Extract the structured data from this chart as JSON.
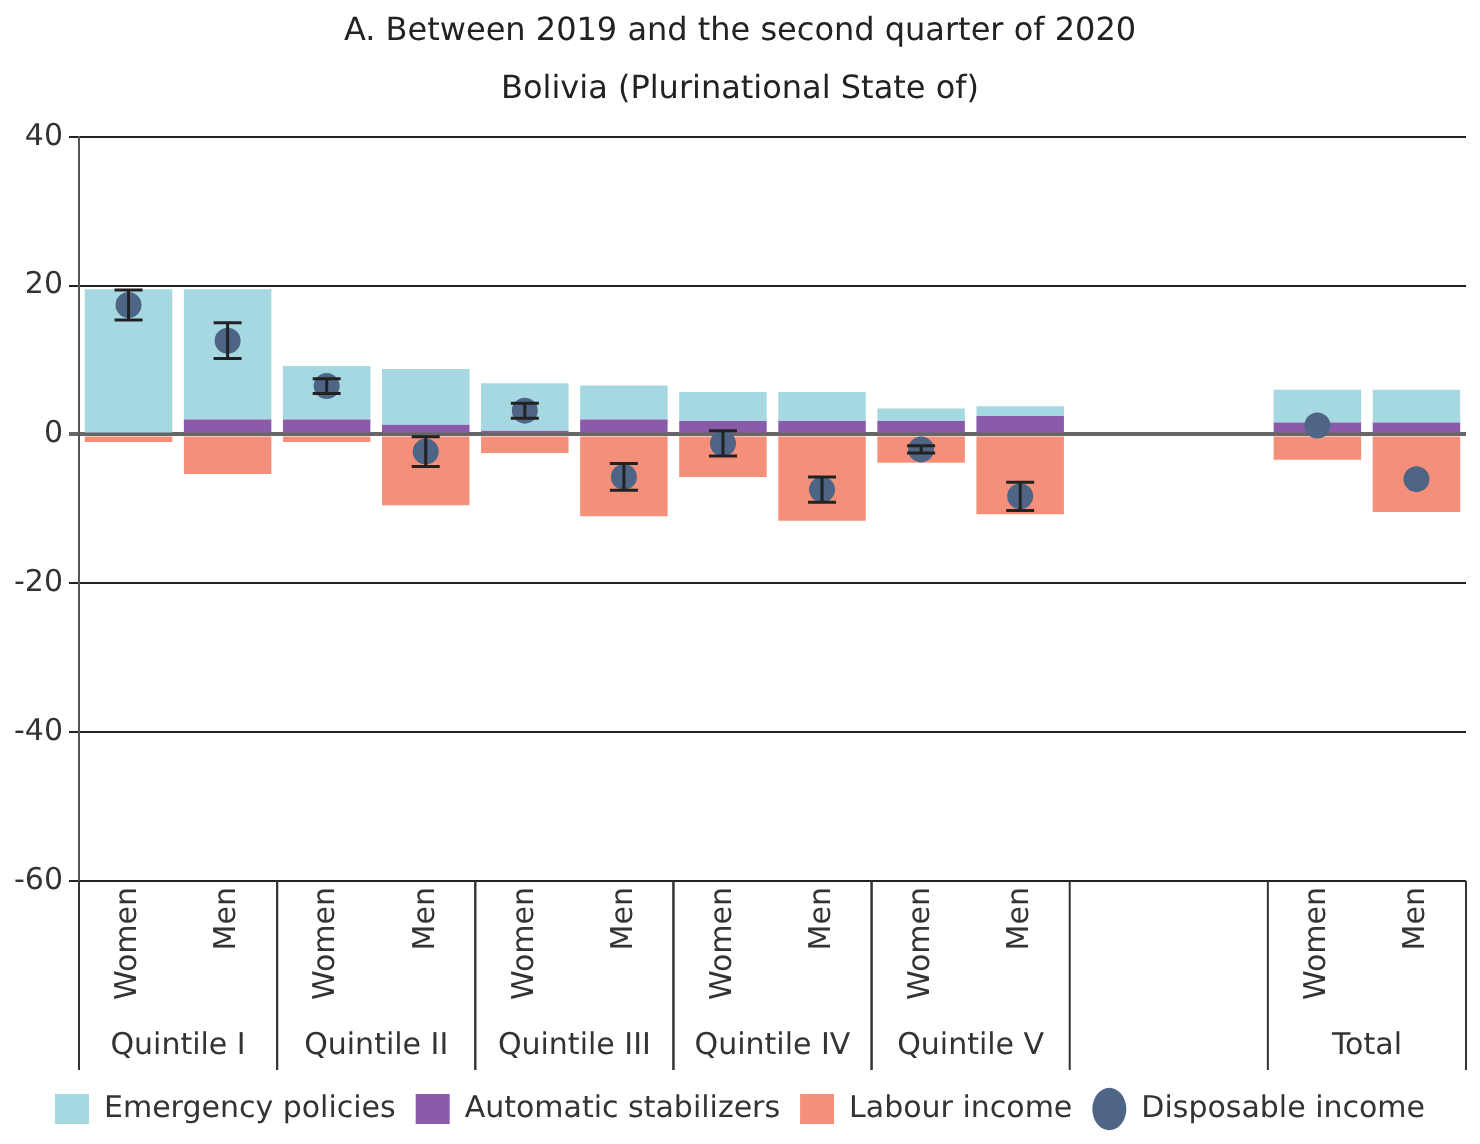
{
  "chart_data": {
    "type": "bar",
    "title": "A. Between 2019 and the second quarter of 2020",
    "subtitle": "Bolivia (Plurinational State of)",
    "categories": [
      "Women",
      "Men",
      "Women",
      "Men",
      "Women",
      "Men",
      "Women",
      "Men",
      "Women",
      "Men",
      null,
      null,
      "Women",
      "Men"
    ],
    "annotations": [
      "Quintile I",
      "Quintile II",
      "Quintile III",
      "Quintile IV",
      "Quintile V",
      "Total"
    ],
    "stacked": true,
    "ylim": [
      -60,
      40
    ],
    "yticks": [
      -60,
      -40,
      -20,
      0,
      20,
      40
    ],
    "grid": "y",
    "legend": "bottom",
    "series": [
      {
        "name": "Labour income",
        "color": "#f4907a",
        "values": [
          -1,
          -5.3,
          -1,
          -9.5,
          -2.5,
          -11,
          -5.7,
          -11.6,
          -3.8,
          -10.7,
          null,
          null,
          -3.4,
          -10.4
        ]
      },
      {
        "name": "Automatic stabilizers",
        "color": "#8a5ba8",
        "values": [
          null,
          2,
          2,
          1.3,
          0.5,
          2,
          1.8,
          1.8,
          1.8,
          2.5,
          null,
          null,
          1.6,
          1.6
        ]
      },
      {
        "name": "Emergency policies",
        "color": "#a5d8e0",
        "values": [
          19.5,
          17.5,
          7.2,
          7.5,
          6.4,
          4.6,
          3.9,
          3.9,
          1.7,
          1.3,
          null,
          null,
          4.4,
          4.4
        ]
      },
      {
        "name": "Disposable income",
        "type": "scatter",
        "color": "#4e6585",
        "marker": "circle",
        "values": [
          17.4,
          12.6,
          6.5,
          -2.3,
          3.2,
          -5.7,
          -1.2,
          -7.4,
          -2,
          -8.3,
          null,
          null,
          1.2,
          -6
        ],
        "errors": [
          2,
          2.4,
          1,
          2,
          1,
          1.8,
          1.7,
          1.7,
          0.5,
          1.9,
          null,
          null,
          null,
          null
        ]
      }
    ]
  }
}
